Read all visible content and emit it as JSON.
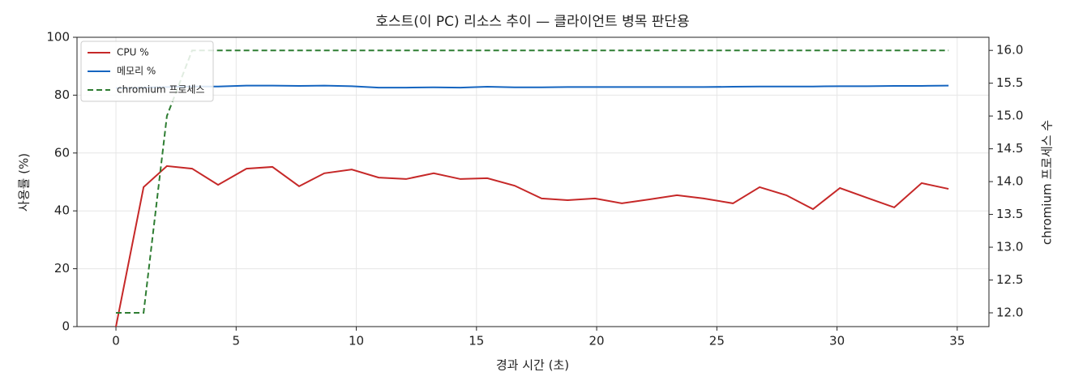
{
  "chart_data": {
    "type": "line",
    "title": "호스트(이 PC) 리소스 추이 — 클라이언트 병목 판단용",
    "xlabel": "경과 시간 (초)",
    "ylabel": "사용률 (%)",
    "y2label": "chromium 프로세스 수",
    "x": [
      0,
      1.15,
      2.12,
      3.17,
      4.25,
      5.43,
      6.51,
      7.62,
      8.67,
      9.81,
      10.93,
      12.07,
      13.22,
      14.33,
      15.45,
      16.59,
      17.71,
      18.79,
      19.93,
      21.05,
      22.23,
      23.34,
      24.45,
      25.67,
      26.78,
      27.89,
      29.0,
      30.12,
      31.26,
      32.38,
      33.52,
      34.64
    ],
    "series": [
      {
        "name": "CPU %",
        "color": "#c62828",
        "linestyle": "solid",
        "values": [
          0,
          48.2,
          55.5,
          54.6,
          49,
          54.6,
          55.2,
          48.5,
          53,
          54.3,
          51.5,
          51,
          53,
          51,
          51.3,
          48.7,
          44.3,
          43.7,
          44.3,
          42.6,
          44,
          45.4,
          44.3,
          42.6,
          48.2,
          45.4,
          40.6,
          47.9,
          44.5,
          41.2,
          49.6,
          47.6
        ]
      },
      {
        "name": "메모리 %",
        "color": "#1565c0",
        "linestyle": "solid",
        "values": [
          82.4,
          82.6,
          82.8,
          83,
          83,
          83.3,
          83.3,
          83.2,
          83.3,
          83.1,
          82.6,
          82.6,
          82.7,
          82.6,
          82.9,
          82.7,
          82.7,
          82.8,
          82.8,
          82.8,
          82.8,
          82.8,
          82.8,
          82.9,
          83,
          83,
          83,
          83.1,
          83.1,
          83.2,
          83.2,
          83.3
        ]
      },
      {
        "name": "chromium 프로세스",
        "color": "#2e7d32",
        "linestyle": "dashed",
        "axis": "y2",
        "values": [
          12,
          12,
          15,
          16,
          16,
          16,
          16,
          16,
          16,
          16,
          16,
          16,
          16,
          16,
          16,
          16,
          16,
          16,
          16,
          16,
          16,
          16,
          16,
          16,
          16,
          16,
          16,
          16,
          16,
          16,
          16,
          16
        ]
      }
    ],
    "xlim": [
      -1.62,
      36.32
    ],
    "xticks": [
      0,
      5,
      10,
      15,
      20,
      25,
      30,
      35
    ],
    "ylim": [
      0,
      100
    ],
    "yticks": [
      0,
      20,
      40,
      60,
      80,
      100
    ],
    "y2lim": [
      11.79,
      16.2
    ],
    "y2ticks": [
      {
        "value": 12,
        "label": "12.0"
      },
      12.5,
      {
        "value": 13,
        "label": "13.0"
      },
      13.5,
      {
        "value": 14,
        "label": "14.0"
      },
      14.5,
      {
        "value": 15,
        "label": "15.0"
      },
      15.5,
      {
        "value": 16,
        "label": "16.0"
      }
    ],
    "grid": true,
    "legend": "upper left"
  }
}
